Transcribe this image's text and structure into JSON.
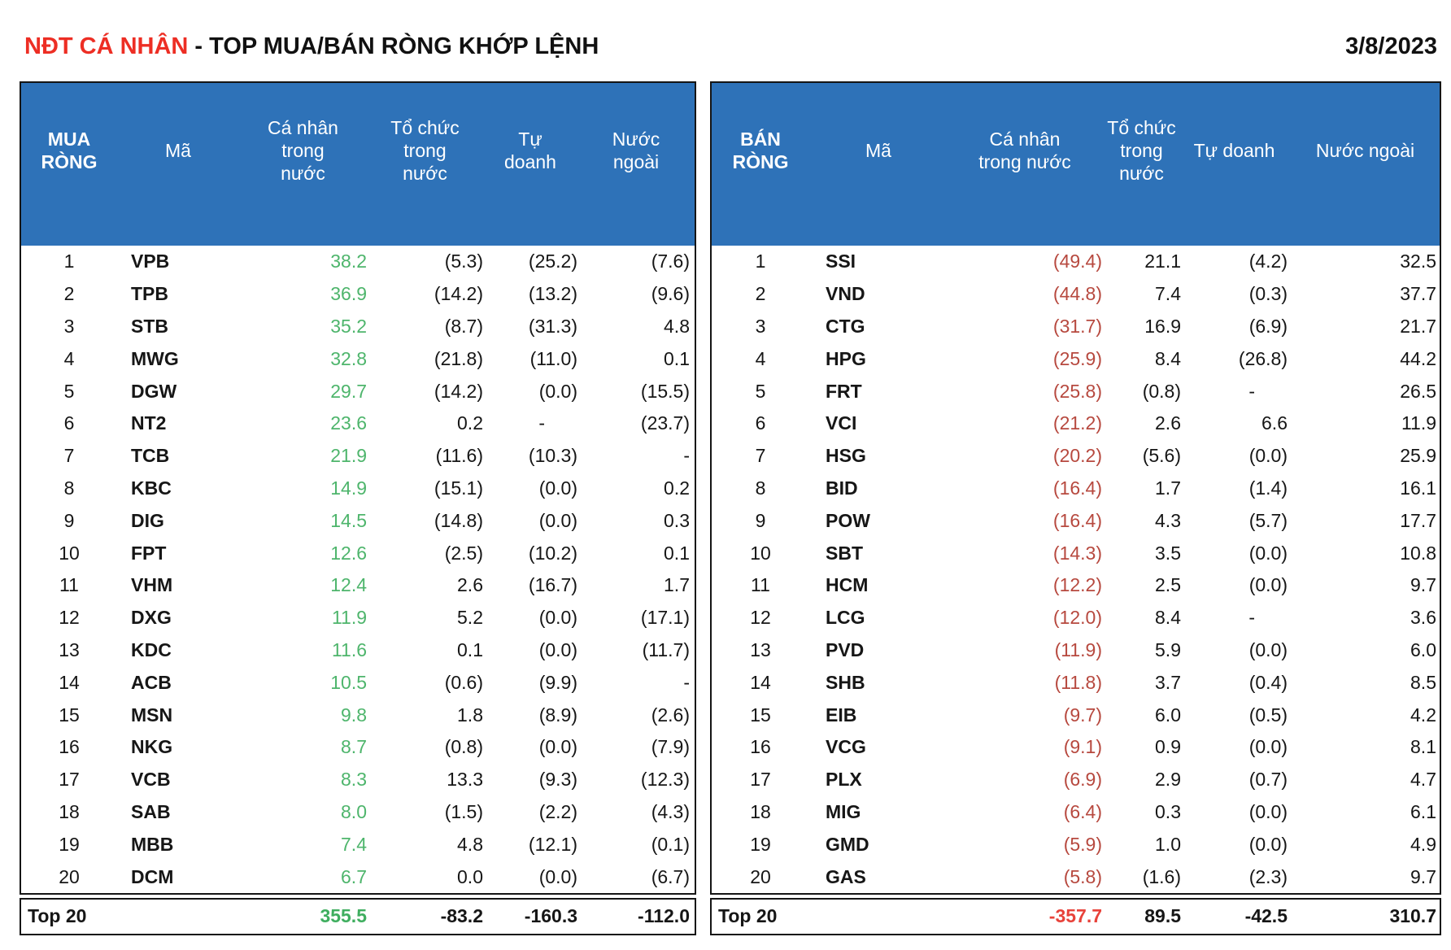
{
  "header": {
    "title_red": "NĐT CÁ NHÂN",
    "title_rest": " - TOP MUA/BÁN RÒNG KHỚP LỆNH",
    "date": "3/8/2023"
  },
  "colors": {
    "header_blue": "#2e72b8",
    "buy_green": "#4eb56c",
    "buy_total_green": "#3fae5f",
    "sell_red": "#b7493f",
    "sell_total_red": "#e8423a",
    "title_red": "#ed2e24",
    "border_black": "#151515"
  },
  "chart_data": [
    {
      "type": "table",
      "corner_label": "MUA\nRÒNG",
      "columns": [
        "Mã",
        "Cá nhân\ntrong\nnước",
        "Tổ chức\ntrong\nnước",
        "Tự\ndoanh",
        "Nước\nngoài"
      ],
      "highlight_color": "#4eb56c",
      "total_highlight_color": "#3fae5f",
      "rows": [
        {
          "rank": "1",
          "ticker": "VPB",
          "values": [
            "38.2",
            "(5.3)",
            "(25.2)",
            "(7.6)"
          ]
        },
        {
          "rank": "2",
          "ticker": "TPB",
          "values": [
            "36.9",
            "(14.2)",
            "(13.2)",
            "(9.6)"
          ]
        },
        {
          "rank": "3",
          "ticker": "STB",
          "values": [
            "35.2",
            "(8.7)",
            "(31.3)",
            "4.8"
          ]
        },
        {
          "rank": "4",
          "ticker": "MWG",
          "values": [
            "32.8",
            "(21.8)",
            "(11.0)",
            "0.1"
          ]
        },
        {
          "rank": "5",
          "ticker": "DGW",
          "values": [
            "29.7",
            "(14.2)",
            "(0.0)",
            "(15.5)"
          ]
        },
        {
          "rank": "6",
          "ticker": "NT2",
          "values": [
            "23.6",
            "0.2",
            "-",
            "(23.7)"
          ]
        },
        {
          "rank": "7",
          "ticker": "TCB",
          "values": [
            "21.9",
            "(11.6)",
            "(10.3)",
            "-"
          ]
        },
        {
          "rank": "8",
          "ticker": "KBC",
          "values": [
            "14.9",
            "(15.1)",
            "(0.0)",
            "0.2"
          ]
        },
        {
          "rank": "9",
          "ticker": "DIG",
          "values": [
            "14.5",
            "(14.8)",
            "(0.0)",
            "0.3"
          ]
        },
        {
          "rank": "10",
          "ticker": "FPT",
          "values": [
            "12.6",
            "(2.5)",
            "(10.2)",
            "0.1"
          ]
        },
        {
          "rank": "11",
          "ticker": "VHM",
          "values": [
            "12.4",
            "2.6",
            "(16.7)",
            "1.7"
          ]
        },
        {
          "rank": "12",
          "ticker": "DXG",
          "values": [
            "11.9",
            "5.2",
            "(0.0)",
            "(17.1)"
          ]
        },
        {
          "rank": "13",
          "ticker": "KDC",
          "values": [
            "11.6",
            "0.1",
            "(0.0)",
            "(11.7)"
          ]
        },
        {
          "rank": "14",
          "ticker": "ACB",
          "values": [
            "10.5",
            "(0.6)",
            "(9.9)",
            "-"
          ]
        },
        {
          "rank": "15",
          "ticker": "MSN",
          "values": [
            "9.8",
            "1.8",
            "(8.9)",
            "(2.6)"
          ]
        },
        {
          "rank": "16",
          "ticker": "NKG",
          "values": [
            "8.7",
            "(0.8)",
            "(0.0)",
            "(7.9)"
          ]
        },
        {
          "rank": "17",
          "ticker": "VCB",
          "values": [
            "8.3",
            "13.3",
            "(9.3)",
            "(12.3)"
          ]
        },
        {
          "rank": "18",
          "ticker": "SAB",
          "values": [
            "8.0",
            "(1.5)",
            "(2.2)",
            "(4.3)"
          ]
        },
        {
          "rank": "19",
          "ticker": "MBB",
          "values": [
            "7.4",
            "4.8",
            "(12.1)",
            "(0.1)"
          ]
        },
        {
          "rank": "20",
          "ticker": "DCM",
          "values": [
            "6.7",
            "0.0",
            "(0.0)",
            "(6.7)"
          ]
        }
      ],
      "total": {
        "label": "Top 20",
        "values": [
          "355.5",
          "-83.2",
          "-160.3",
          "-112.0"
        ]
      }
    },
    {
      "type": "table",
      "corner_label": "BÁN\nRÒNG",
      "columns": [
        "Mã",
        "Cá nhân\ntrong nước",
        "Tổ chức\ntrong\nnước",
        "Tự doanh",
        "Nước ngoài"
      ],
      "highlight_color": "#b7493f",
      "total_highlight_color": "#e8423a",
      "rows": [
        {
          "rank": "1",
          "ticker": "SSI",
          "values": [
            "(49.4)",
            "21.1",
            "(4.2)",
            "32.5"
          ]
        },
        {
          "rank": "2",
          "ticker": "VND",
          "values": [
            "(44.8)",
            "7.4",
            "(0.3)",
            "37.7"
          ]
        },
        {
          "rank": "3",
          "ticker": "CTG",
          "values": [
            "(31.7)",
            "16.9",
            "(6.9)",
            "21.7"
          ]
        },
        {
          "rank": "4",
          "ticker": "HPG",
          "values": [
            "(25.9)",
            "8.4",
            "(26.8)",
            "44.2"
          ]
        },
        {
          "rank": "5",
          "ticker": "FRT",
          "values": [
            "(25.8)",
            "(0.8)",
            "-",
            "26.5"
          ]
        },
        {
          "rank": "6",
          "ticker": "VCI",
          "values": [
            "(21.2)",
            "2.6",
            "6.6",
            "11.9"
          ]
        },
        {
          "rank": "7",
          "ticker": "HSG",
          "values": [
            "(20.2)",
            "(5.6)",
            "(0.0)",
            "25.9"
          ]
        },
        {
          "rank": "8",
          "ticker": "BID",
          "values": [
            "(16.4)",
            "1.7",
            "(1.4)",
            "16.1"
          ]
        },
        {
          "rank": "9",
          "ticker": "POW",
          "values": [
            "(16.4)",
            "4.3",
            "(5.7)",
            "17.7"
          ]
        },
        {
          "rank": "10",
          "ticker": "SBT",
          "values": [
            "(14.3)",
            "3.5",
            "(0.0)",
            "10.8"
          ]
        },
        {
          "rank": "11",
          "ticker": "HCM",
          "values": [
            "(12.2)",
            "2.5",
            "(0.0)",
            "9.7"
          ]
        },
        {
          "rank": "12",
          "ticker": "LCG",
          "values": [
            "(12.0)",
            "8.4",
            "-",
            "3.6"
          ]
        },
        {
          "rank": "13",
          "ticker": "PVD",
          "values": [
            "(11.9)",
            "5.9",
            "(0.0)",
            "6.0"
          ]
        },
        {
          "rank": "14",
          "ticker": "SHB",
          "values": [
            "(11.8)",
            "3.7",
            "(0.4)",
            "8.5"
          ]
        },
        {
          "rank": "15",
          "ticker": "EIB",
          "values": [
            "(9.7)",
            "6.0",
            "(0.5)",
            "4.2"
          ]
        },
        {
          "rank": "16",
          "ticker": "VCG",
          "values": [
            "(9.1)",
            "0.9",
            "(0.0)",
            "8.1"
          ]
        },
        {
          "rank": "17",
          "ticker": "PLX",
          "values": [
            "(6.9)",
            "2.9",
            "(0.7)",
            "4.7"
          ]
        },
        {
          "rank": "18",
          "ticker": "MIG",
          "values": [
            "(6.4)",
            "0.3",
            "(0.0)",
            "6.1"
          ]
        },
        {
          "rank": "19",
          "ticker": "GMD",
          "values": [
            "(5.9)",
            "1.0",
            "(0.0)",
            "4.9"
          ]
        },
        {
          "rank": "20",
          "ticker": "GAS",
          "values": [
            "(5.8)",
            "(1.6)",
            "(2.3)",
            "9.7"
          ]
        }
      ],
      "total": {
        "label": "Top 20",
        "values": [
          "-357.7",
          "89.5",
          "-42.5",
          "310.7"
        ]
      }
    }
  ]
}
